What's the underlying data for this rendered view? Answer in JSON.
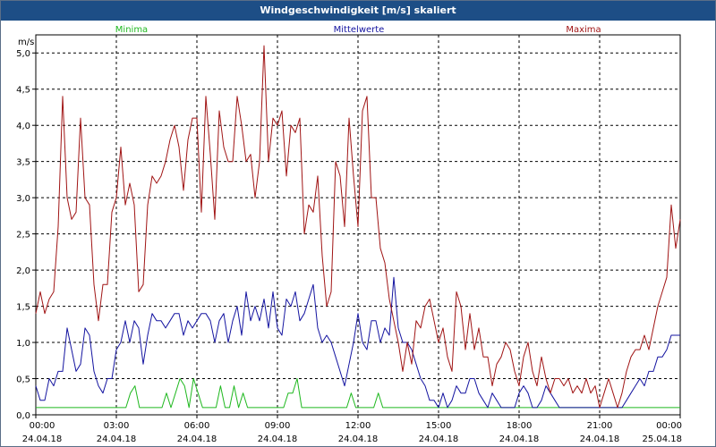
{
  "window": {
    "title": "Windgeschwindigkeit [m/s] skaliert"
  },
  "colors": {
    "title_bar": "#1d4e86",
    "minima": "#1fb81f",
    "mittelwerte": "#1414a0",
    "maxima": "#a01414",
    "grid": "#000000"
  },
  "chart_data": {
    "type": "line",
    "title": "Windgeschwindigkeit [m/s] skaliert",
    "ylabel": "m/s",
    "ylim": [
      0,
      5.25
    ],
    "xlim": [
      "24.04.18 00:00",
      "25.04.18 00:00"
    ],
    "grid": true,
    "legend": "top",
    "y_ticks": [
      "0,0",
      "0,5",
      "1,0",
      "1,5",
      "2,0",
      "2,5",
      "3,0",
      "3,5",
      "4,0",
      "4,5",
      "5,0"
    ],
    "x_ticks": [
      {
        "time": "00:00",
        "date": "24.04.18"
      },
      {
        "time": "03:00",
        "date": "24.04.18"
      },
      {
        "time": "06:00",
        "date": "24.04.18"
      },
      {
        "time": "09:00",
        "date": "24.04.18"
      },
      {
        "time": "12:00",
        "date": "24.04.18"
      },
      {
        "time": "15:00",
        "date": "24.04.18"
      },
      {
        "time": "18:00",
        "date": "24.04.18"
      },
      {
        "time": "21:00",
        "date": "24.04.18"
      },
      {
        "time": "00:00",
        "date": "25.04.18"
      }
    ],
    "x_hours_step": 0.1666667,
    "series": [
      {
        "name": "Minima",
        "color": "#1fb81f",
        "values": [
          0.1,
          0.1,
          0.1,
          0.1,
          0.1,
          0.1,
          0.1,
          0.1,
          0.1,
          0.1,
          0.1,
          0.1,
          0.1,
          0.1,
          0.1,
          0.1,
          0.1,
          0.1,
          0.1,
          0.1,
          0.1,
          0.3,
          0.4,
          0.1,
          0.1,
          0.1,
          0.1,
          0.1,
          0.1,
          0.3,
          0.1,
          0.3,
          0.5,
          0.4,
          0.1,
          0.5,
          0.3,
          0.1,
          0.1,
          0.1,
          0.1,
          0.4,
          0.1,
          0.1,
          0.4,
          0.1,
          0.3,
          0.1,
          0.1,
          0.1,
          0.1,
          0.1,
          0.1,
          0.1,
          0.1,
          0.1,
          0.3,
          0.3,
          0.5,
          0.1,
          0.1,
          0.1,
          0.1,
          0.1,
          0.1,
          0.1,
          0.1,
          0.1,
          0.1,
          0.1,
          0.3,
          0.1,
          0.1,
          0.1,
          0.1,
          0.1,
          0.3,
          0.1,
          0.1,
          0.1,
          0.1,
          0.1,
          0.1,
          0.1,
          0.1,
          0.1,
          0.1,
          0.1,
          0.1,
          0.1,
          0.1,
          0.1,
          0.1,
          0.1,
          0.1,
          0.1,
          0.1,
          0.1,
          0.1,
          0.1,
          0.1,
          0.1,
          0.1,
          0.1,
          0.1,
          0.1,
          0.1,
          0.1,
          0.1,
          0.1,
          0.1,
          0.1,
          0.1,
          0.1,
          0.1,
          0.1,
          0.1,
          0.1,
          0.1,
          0.1,
          0.1,
          0.1,
          0.1,
          0.1,
          0.1,
          0.1,
          0.1,
          0.1,
          0.1,
          0.1,
          0.1,
          0.1,
          0.1,
          0.1,
          0.1,
          0.1,
          0.1,
          0.1,
          0.1,
          0.1,
          0.1,
          0.1,
          0.1,
          0.1
        ]
      },
      {
        "name": "Mittelwerte",
        "color": "#1414a0",
        "values": [
          0.4,
          0.2,
          0.2,
          0.5,
          0.4,
          0.6,
          0.6,
          1.2,
          0.9,
          0.6,
          0.7,
          1.2,
          1.1,
          0.6,
          0.4,
          0.3,
          0.5,
          0.5,
          0.9,
          1.0,
          1.3,
          1.0,
          1.3,
          1.2,
          0.7,
          1.1,
          1.4,
          1.3,
          1.3,
          1.2,
          1.3,
          1.4,
          1.4,
          1.1,
          1.3,
          1.2,
          1.3,
          1.4,
          1.4,
          1.3,
          1.0,
          1.3,
          1.4,
          1.0,
          1.3,
          1.5,
          1.1,
          1.7,
          1.3,
          1.5,
          1.3,
          1.6,
          1.2,
          1.7,
          1.2,
          1.1,
          1.6,
          1.5,
          1.7,
          1.3,
          1.4,
          1.6,
          1.8,
          1.2,
          1.0,
          1.1,
          1.0,
          0.8,
          0.6,
          0.4,
          0.7,
          1.0,
          1.4,
          1.0,
          0.9,
          1.3,
          1.3,
          1.0,
          1.2,
          1.1,
          1.9,
          1.2,
          1.0,
          1.0,
          0.9,
          0.7,
          0.5,
          0.4,
          0.2,
          0.2,
          0.1,
          0.3,
          0.1,
          0.2,
          0.4,
          0.3,
          0.3,
          0.5,
          0.5,
          0.3,
          0.2,
          0.1,
          0.3,
          0.2,
          0.1,
          0.1,
          0.1,
          0.1,
          0.3,
          0.4,
          0.3,
          0.1,
          0.1,
          0.2,
          0.4,
          0.3,
          0.2,
          0.1,
          0.1,
          0.1,
          0.1,
          0.1,
          0.1,
          0.1,
          0.1,
          0.1,
          0.1,
          0.1,
          0.1,
          0.1,
          0.1,
          0.1,
          0.2,
          0.3,
          0.4,
          0.5,
          0.4,
          0.6,
          0.6,
          0.8,
          0.8,
          0.9,
          1.1,
          1.1,
          1.1
        ]
      },
      {
        "name": "Maxima",
        "color": "#a01414",
        "values": [
          1.4,
          1.7,
          1.4,
          1.6,
          1.7,
          2.6,
          4.4,
          3.0,
          2.7,
          2.8,
          4.1,
          3.0,
          2.9,
          1.8,
          1.3,
          1.8,
          1.8,
          2.8,
          3.0,
          3.7,
          2.9,
          3.2,
          2.9,
          1.7,
          1.8,
          2.9,
          3.3,
          3.2,
          3.3,
          3.5,
          3.8,
          4.0,
          3.7,
          3.1,
          3.8,
          4.1,
          4.1,
          2.8,
          4.4,
          3.6,
          2.7,
          4.2,
          3.7,
          3.5,
          3.5,
          4.4,
          4.0,
          3.5,
          3.6,
          3.0,
          3.5,
          5.1,
          3.5,
          4.1,
          4.0,
          4.2,
          3.3,
          4.0,
          3.9,
          4.1,
          2.5,
          2.9,
          2.8,
          3.3,
          2.2,
          1.5,
          1.7,
          3.5,
          3.3,
          2.6,
          4.1,
          3.3,
          2.6,
          4.2,
          4.4,
          3.0,
          3.0,
          2.3,
          2.1,
          1.6,
          1.3,
          1.0,
          0.6,
          1.0,
          0.7,
          1.3,
          1.2,
          1.5,
          1.6,
          1.3,
          1.0,
          1.2,
          0.8,
          0.6,
          1.7,
          1.5,
          0.9,
          1.4,
          0.9,
          1.2,
          0.8,
          0.8,
          0.4,
          0.7,
          0.8,
          1.0,
          0.9,
          0.6,
          0.4,
          0.8,
          1.0,
          0.6,
          0.4,
          0.8,
          0.5,
          0.3,
          0.5,
          0.5,
          0.4,
          0.5,
          0.3,
          0.4,
          0.3,
          0.5,
          0.3,
          0.4,
          0.1,
          0.3,
          0.5,
          0.3,
          0.1,
          0.3,
          0.6,
          0.8,
          0.9,
          0.9,
          1.1,
          0.9,
          1.2,
          1.5,
          1.7,
          1.9,
          2.9,
          2.3,
          2.7
        ]
      }
    ]
  }
}
